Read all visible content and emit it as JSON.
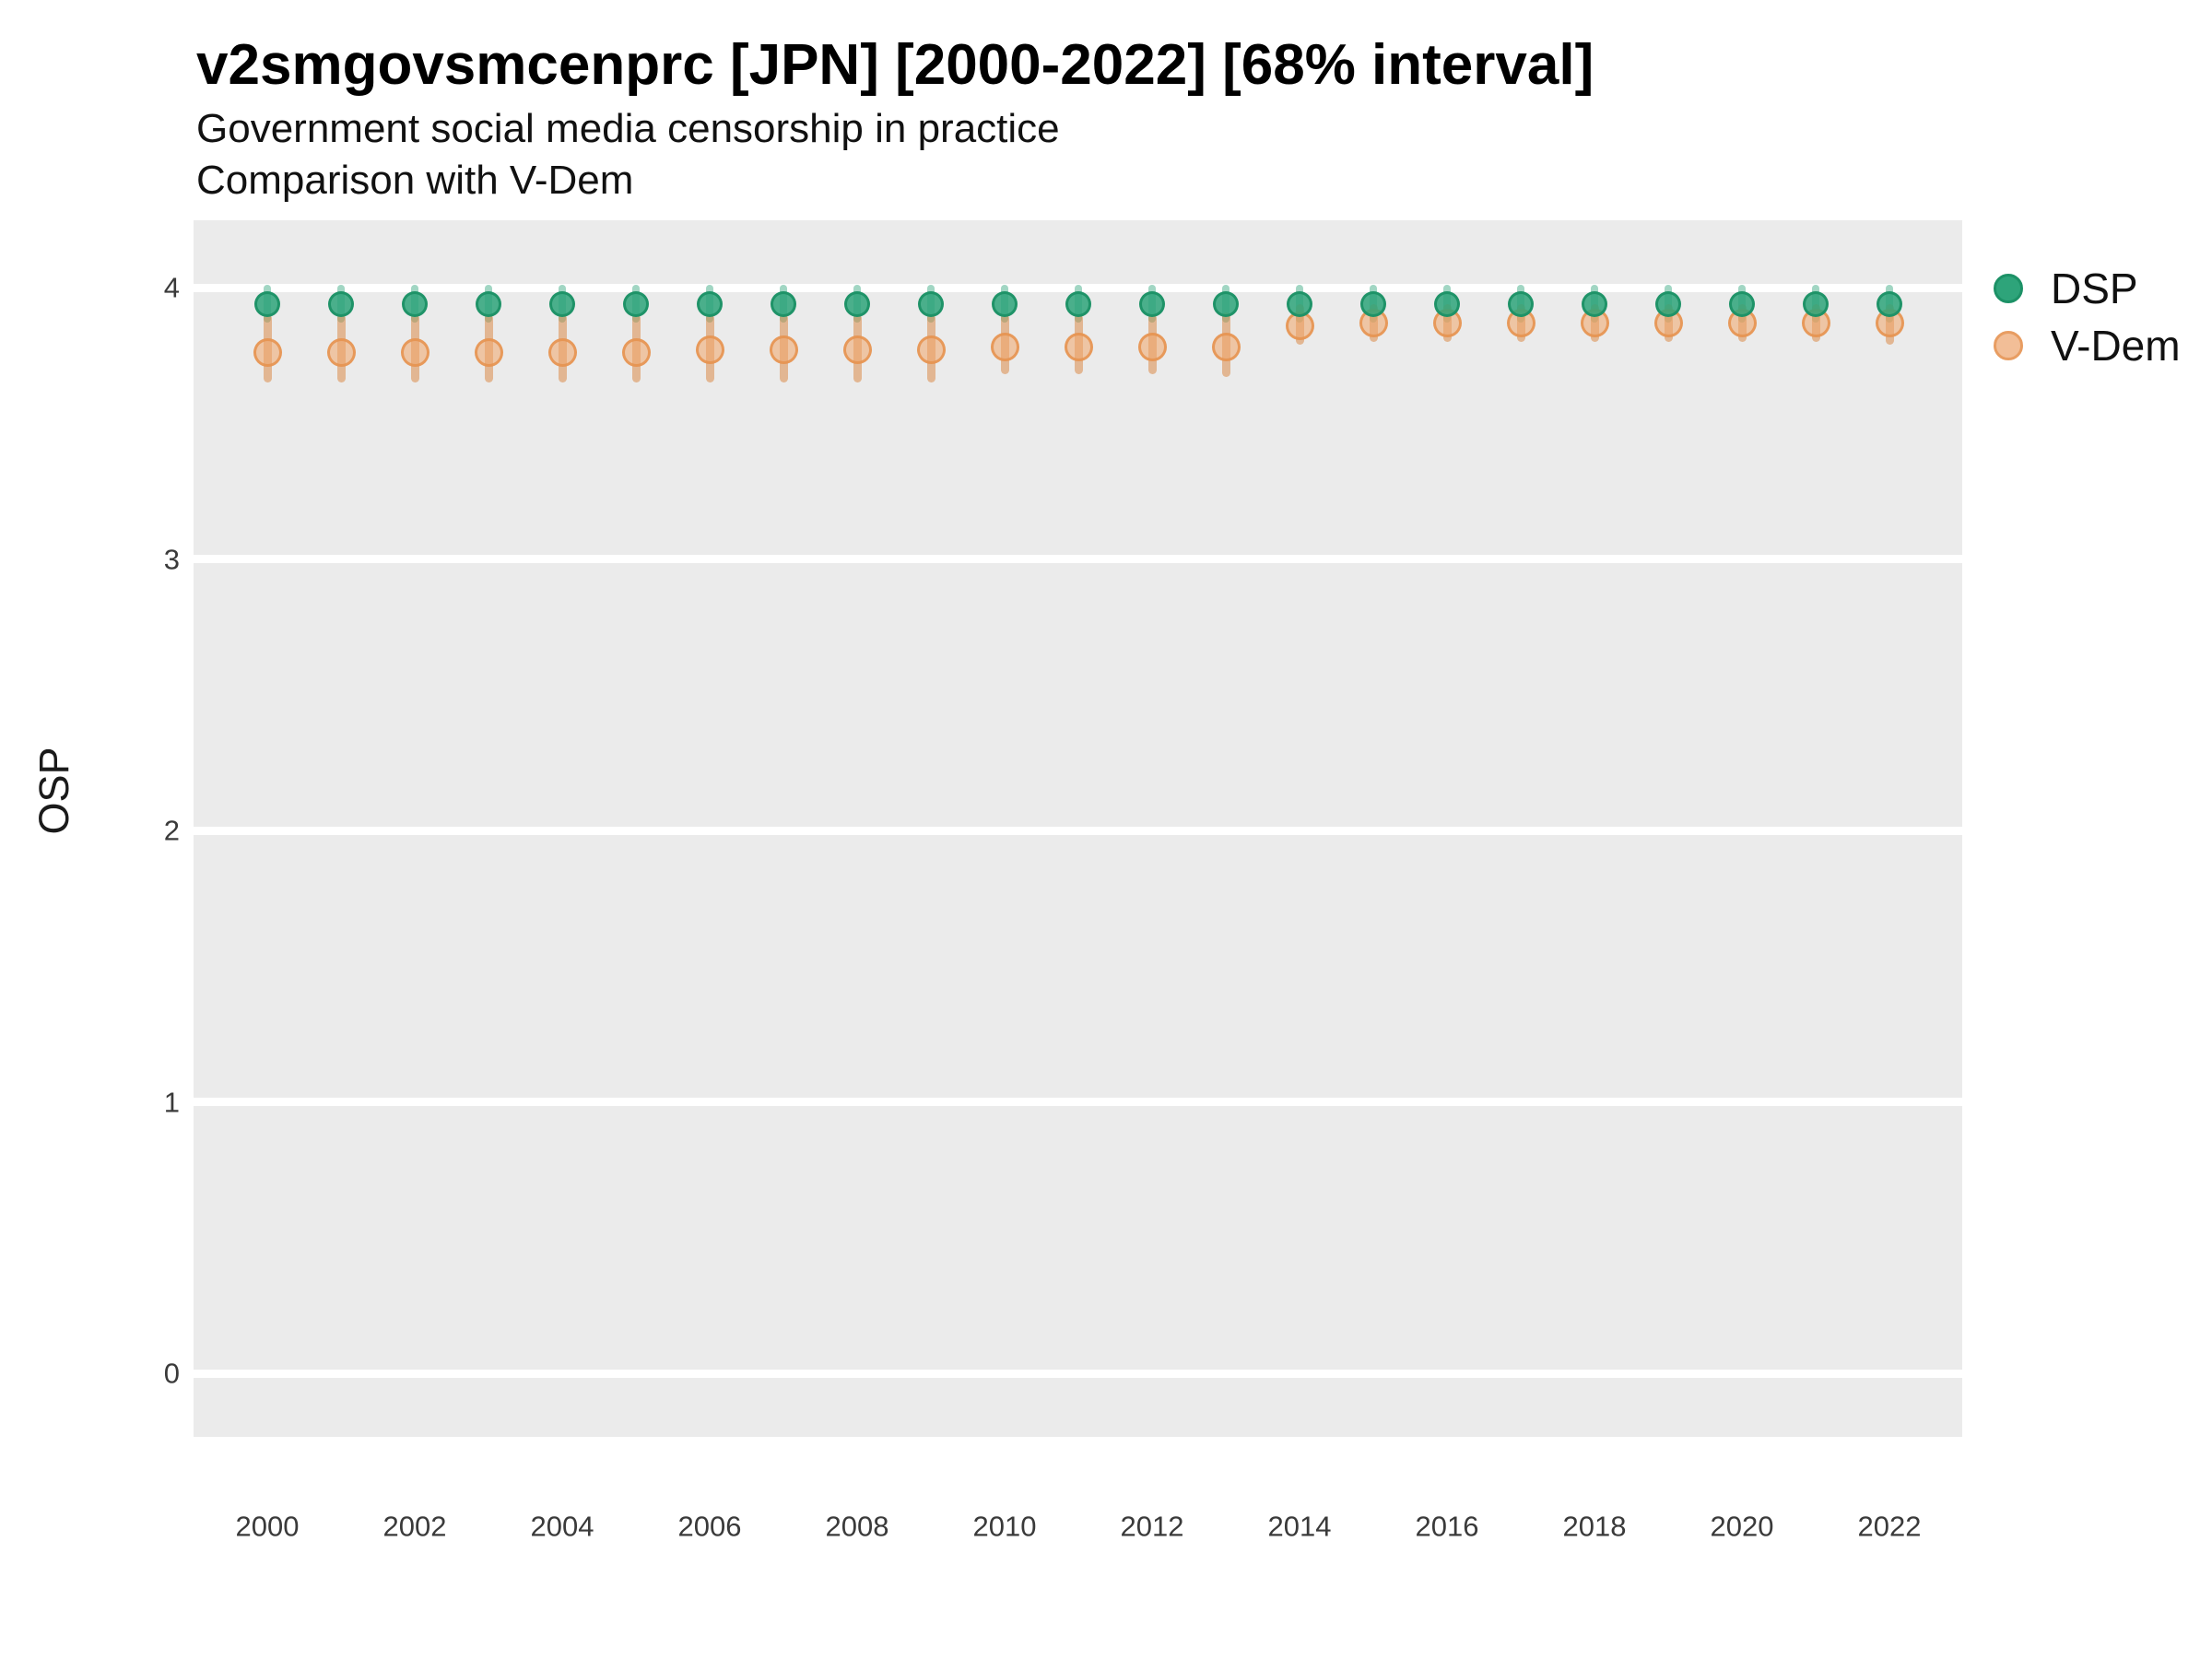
{
  "header": {
    "title": "v2smgovsmcenprc [JPN] [2000-2022] [68% interval]",
    "subtitle_line1": "Government social media censorship in practice",
    "subtitle_line2": "Comparison with V-Dem"
  },
  "y_axis": {
    "label": "OSP",
    "ticks": [
      4,
      3,
      2,
      1,
      0
    ]
  },
  "x_axis": {
    "ticks": [
      2000,
      2002,
      2004,
      2006,
      2008,
      2010,
      2012,
      2014,
      2016,
      2018,
      2020,
      2022
    ]
  },
  "legend": {
    "items": [
      {
        "label": "DSP",
        "fill": "#2EA47A",
        "stroke": "#1C9166"
      },
      {
        "label": "V-Dem",
        "fill": "#F2BE97",
        "stroke": "#E89D62"
      }
    ]
  },
  "colors": {
    "plot_background": "#EBEBEB",
    "gridline": "#FFFFFF",
    "dsp_interval": "rgba(46,164,122,0.45)",
    "dsp_point_fill": "rgba(46,164,122,0.85)",
    "dsp_point_stroke": "rgba(28,145,102,0.95)",
    "vdem_interval": "rgba(219,139,73,0.55)",
    "vdem_point_fill": "rgba(240,166,106,0.55)",
    "vdem_point_stroke": "rgba(230,148,82,0.9)"
  },
  "chart_data": {
    "type": "scatter",
    "title": "v2smgovsmcenprc [JPN] [2000-2022] [68% interval]",
    "subtitle": [
      "Government social media censorship in practice",
      "Comparison with V-Dem"
    ],
    "xlabel": "",
    "ylabel": "OSP",
    "interval": "68%",
    "grid": "major-horizontal",
    "legend_position": "right",
    "ylim": [
      -0.23,
      4.25
    ],
    "yticks": [
      0,
      1,
      2,
      3,
      4
    ],
    "xticks": [
      2000,
      2002,
      2004,
      2006,
      2008,
      2010,
      2012,
      2014,
      2016,
      2018,
      2020,
      2022
    ],
    "x": [
      2000,
      2001,
      2002,
      2003,
      2004,
      2005,
      2006,
      2007,
      2008,
      2009,
      2010,
      2011,
      2012,
      2013,
      2014,
      2015,
      2016,
      2017,
      2018,
      2019,
      2020,
      2021,
      2022
    ],
    "series": [
      {
        "name": "DSP",
        "values": [
          3.94,
          3.94,
          3.94,
          3.94,
          3.94,
          3.94,
          3.94,
          3.94,
          3.94,
          3.94,
          3.94,
          3.94,
          3.94,
          3.94,
          3.94,
          3.94,
          3.94,
          3.94,
          3.94,
          3.94,
          3.94,
          3.94,
          3.94
        ],
        "lower": [
          3.87,
          3.87,
          3.87,
          3.87,
          3.87,
          3.87,
          3.87,
          3.87,
          3.87,
          3.87,
          3.87,
          3.87,
          3.87,
          3.87,
          3.87,
          3.87,
          3.87,
          3.87,
          3.87,
          3.87,
          3.87,
          3.87,
          3.87
        ],
        "upper": [
          4.01,
          4.01,
          4.01,
          4.01,
          4.01,
          4.01,
          4.01,
          4.01,
          4.01,
          4.01,
          4.01,
          4.01,
          4.01,
          4.01,
          4.01,
          4.01,
          4.01,
          4.01,
          4.01,
          4.01,
          4.01,
          4.01,
          4.01
        ]
      },
      {
        "name": "V-Dem",
        "values": [
          3.76,
          3.76,
          3.76,
          3.76,
          3.76,
          3.76,
          3.77,
          3.77,
          3.77,
          3.77,
          3.78,
          3.78,
          3.78,
          3.78,
          3.86,
          3.87,
          3.87,
          3.87,
          3.87,
          3.87,
          3.87,
          3.87,
          3.87
        ],
        "lower": [
          3.65,
          3.65,
          3.65,
          3.65,
          3.65,
          3.65,
          3.65,
          3.65,
          3.65,
          3.65,
          3.68,
          3.68,
          3.68,
          3.67,
          3.79,
          3.8,
          3.8,
          3.8,
          3.8,
          3.8,
          3.8,
          3.8,
          3.79
        ],
        "upper": [
          3.9,
          3.9,
          3.9,
          3.9,
          3.9,
          3.9,
          3.9,
          3.9,
          3.9,
          3.9,
          3.9,
          3.9,
          3.9,
          3.91,
          3.94,
          3.94,
          3.94,
          3.94,
          3.94,
          3.94,
          3.94,
          3.94,
          3.94
        ]
      }
    ]
  }
}
